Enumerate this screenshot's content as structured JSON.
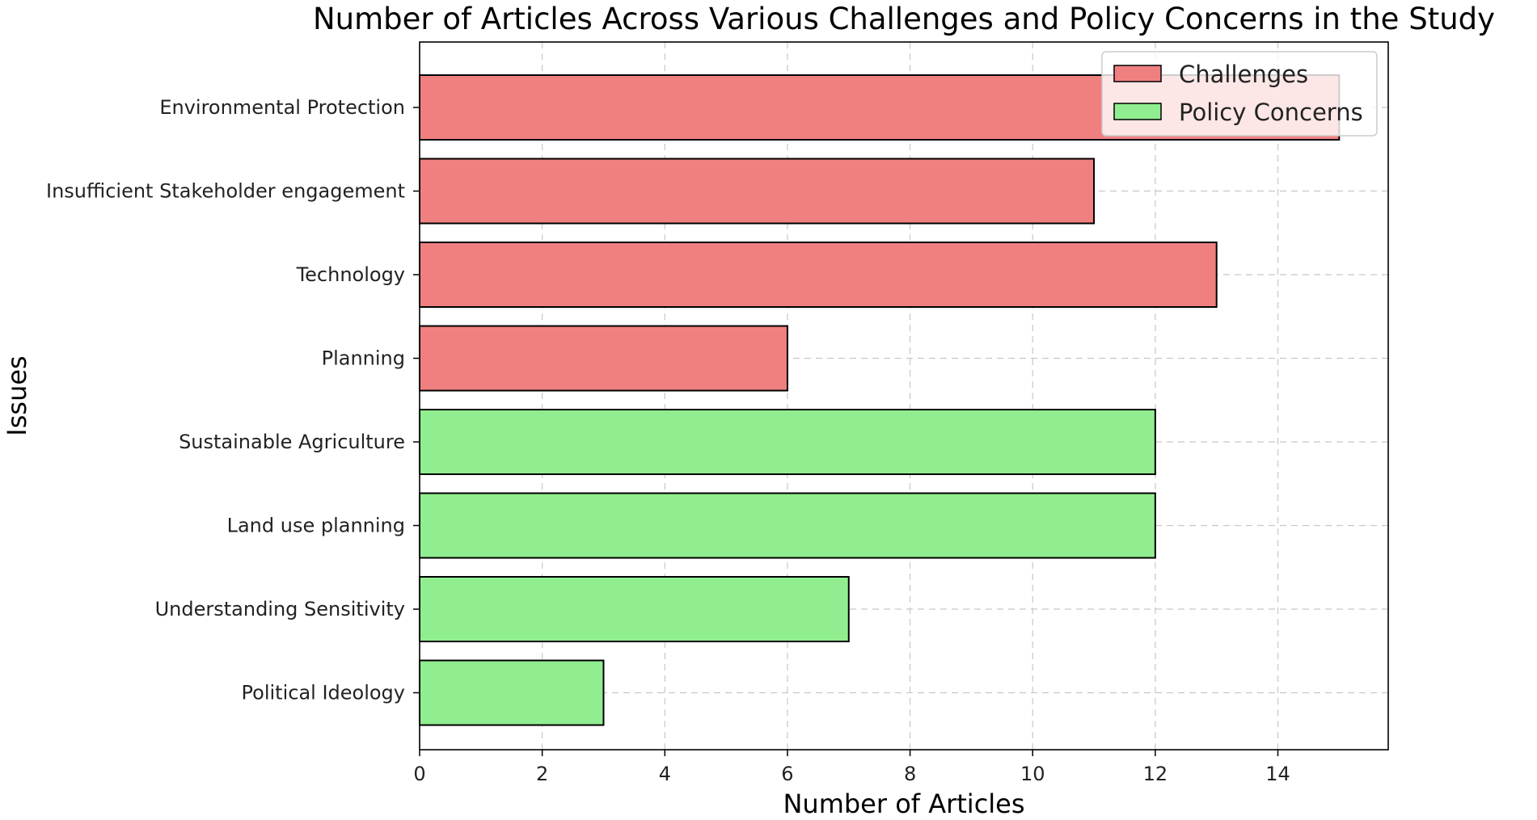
{
  "chart_data": {
    "type": "bar",
    "orientation": "horizontal",
    "title": "Number of Articles Across Various Challenges and Policy Concerns in the Study",
    "xlabel": "Number of Articles",
    "ylabel": "Issues",
    "xlim": [
      0,
      15.8
    ],
    "xticks": [
      0,
      2,
      4,
      6,
      8,
      10,
      12,
      14
    ],
    "grid": true,
    "legend_position": "top-right",
    "categories": [
      "Environmental Protection",
      "Insufficient Stakeholder engagement",
      "Technology",
      "Planning",
      "Sustainable Agriculture",
      "Land use planning",
      "Understanding Sensitivity",
      "Political Ideology"
    ],
    "values": [
      15,
      11,
      13,
      6,
      12,
      12,
      7,
      3
    ],
    "groups": [
      "Challenges",
      "Challenges",
      "Challenges",
      "Challenges",
      "Policy Concerns",
      "Policy Concerns",
      "Policy Concerns",
      "Policy Concerns"
    ],
    "series": [
      {
        "name": "Challenges",
        "color": "#f08080"
      },
      {
        "name": "Policy Concerns",
        "color": "#90ee90"
      }
    ]
  }
}
